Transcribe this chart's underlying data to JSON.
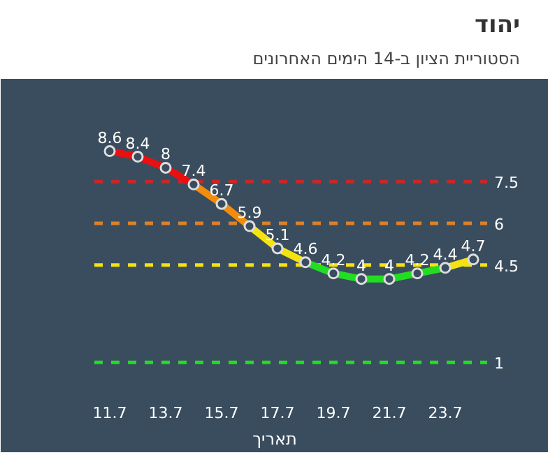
{
  "chart_data": {
    "type": "line",
    "title": "יהוד",
    "subtitle": "הסטוריית הציון ב-14 הימים האחרונים",
    "xlabel": "תאריך",
    "categories": [
      "11.7",
      null,
      "13.7",
      null,
      "15.7",
      null,
      "17.7",
      null,
      "19.7",
      null,
      "21.7",
      null,
      "23.7",
      null
    ],
    "series": [
      {
        "color": "#e81010",
        "values": [
          8.6,
          8.4,
          8,
          7.4,
          null,
          null,
          null,
          null,
          null,
          null,
          null,
          null,
          null,
          null
        ],
        "value_labels": [
          "8.6",
          "8.4",
          "8",
          "7.4",
          null,
          null,
          null,
          null,
          null,
          null,
          null,
          null,
          null,
          null
        ]
      },
      {
        "color": "#f28c0f",
        "values": [
          null,
          null,
          null,
          7.4,
          6.7,
          5.9,
          null,
          null,
          null,
          null,
          null,
          null,
          null,
          null
        ],
        "value_labels": [
          null,
          null,
          null,
          null,
          "6.7",
          "5.9",
          null,
          null,
          null,
          null,
          null,
          null,
          null,
          null
        ]
      },
      {
        "color": "#f5e211",
        "values": [
          null,
          null,
          null,
          null,
          null,
          5.9,
          5.1,
          4.6,
          null,
          null,
          null,
          null,
          4.4,
          4.7
        ],
        "value_labels": [
          null,
          null,
          null,
          null,
          null,
          null,
          "5.1",
          "4.6",
          null,
          null,
          null,
          null,
          null,
          "4.7"
        ]
      },
      {
        "color": "#22dd22",
        "values": [
          null,
          null,
          null,
          null,
          null,
          null,
          null,
          4.6,
          4.2,
          4,
          4,
          4.2,
          4.4,
          null
        ],
        "value_labels": [
          null,
          null,
          null,
          null,
          null,
          null,
          null,
          null,
          "4.2",
          "4",
          "4",
          "4.2",
          "4.4",
          null
        ]
      }
    ],
    "ylim": [
      0,
      11
    ],
    "tick_labels": "x",
    "grid": false,
    "marker": "circle",
    "ref_lines": [
      {
        "axis": "y",
        "value": 7.5,
        "label": "7.5",
        "color": "#c62828",
        "line_style": "dashed"
      },
      {
        "axis": "y",
        "value": 6,
        "label": "6",
        "color": "#d9822b",
        "line_style": "dashed"
      },
      {
        "axis": "y",
        "value": 4.5,
        "label": "4.5",
        "color": "#f5e211",
        "line_style": "dashed"
      },
      {
        "axis": "y",
        "value": 1,
        "label": "1",
        "color": "#22dd22",
        "line_style": "dashed"
      }
    ]
  }
}
